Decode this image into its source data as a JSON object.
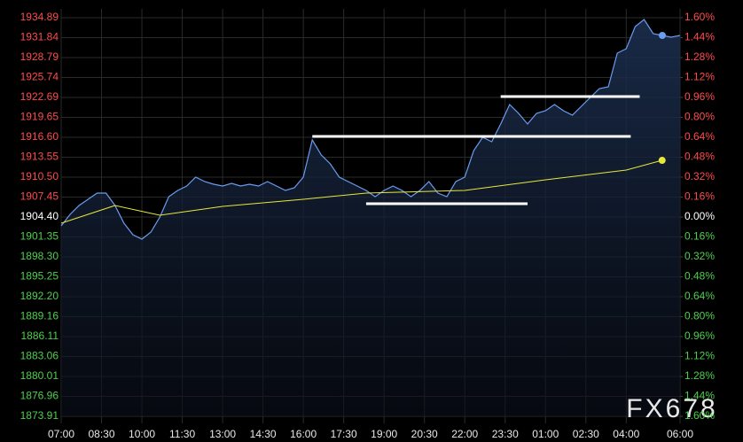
{
  "chart_data": {
    "type": "line",
    "watermark": "FX678",
    "xlim": [
      "07:00",
      "06:00"
    ],
    "xticks": [
      "07:00",
      "08:30",
      "10:00",
      "11:30",
      "13:00",
      "14:30",
      "16:00",
      "17:30",
      "19:00",
      "20:30",
      "22:00",
      "23:30",
      "01:00",
      "02:30",
      "04:00",
      "06:00"
    ],
    "ylim": [
      1873.91,
      1934.89
    ],
    "yticks": [
      1934.89,
      1931.84,
      1928.79,
      1925.74,
      {
        "value": 1922.69,
        "label": "1922.69"
      },
      1919.65,
      {
        "value": 1916.6,
        "label": "1916.60"
      },
      1913.55,
      {
        "value": 1910.5,
        "label": "1910.50"
      },
      1907.45,
      {
        "value": 1904.4,
        "label": "1904.40"
      },
      1901.35,
      {
        "value": 1898.3,
        "label": "1898.30"
      },
      1895.25,
      {
        "value": 1892.2,
        "label": "1892.20"
      },
      1889.16,
      1886.11,
      1883.06,
      1880.01,
      1876.96,
      1873.91
    ],
    "y2lim": [
      -1.6,
      1.6
    ],
    "y2ticks": [
      {
        "value": 1.6,
        "label": "1.60%"
      },
      {
        "value": 1.44,
        "label": "1.44%"
      },
      {
        "value": 1.28,
        "label": "1.28%"
      },
      {
        "value": 1.12,
        "label": "1.12%"
      },
      {
        "value": 0.96,
        "label": "0.96%"
      },
      {
        "value": 0.8,
        "label": "0.80%"
      },
      {
        "value": 0.64,
        "label": "0.64%"
      },
      {
        "value": 0.48,
        "label": "0.48%"
      },
      {
        "value": 0.32,
        "label": "0.32%"
      },
      {
        "value": 0.16,
        "label": "0.16%"
      },
      {
        "value": 0,
        "label": "0.00%"
      },
      {
        "value": -0.16,
        "label": "0.16%"
      },
      {
        "value": -0.32,
        "label": "0.32%"
      },
      {
        "value": -0.48,
        "label": "0.48%"
      },
      {
        "value": -0.64,
        "label": "0.64%"
      },
      {
        "value": -0.8,
        "label": "0.80%"
      },
      {
        "value": -0.96,
        "label": "0.96%"
      },
      {
        "value": -1.12,
        "label": "1.12%"
      },
      {
        "value": -1.28,
        "label": "1.28%"
      },
      {
        "value": -1.44,
        "label": "1.44%"
      },
      {
        "value": -1.6,
        "label": "1.60%"
      }
    ],
    "grid": true,
    "series": [
      {
        "color": "#6a9df0",
        "x": [
          "07:00",
          "07:20",
          "07:40",
          "08:00",
          "08:20",
          "08:40",
          "09:00",
          "09:20",
          "09:40",
          "10:00",
          "10:20",
          "10:40",
          "11:00",
          "11:20",
          "11:40",
          "12:00",
          "12:20",
          "12:40",
          "13:00",
          "13:20",
          "13:40",
          "14:00",
          "14:20",
          "14:40",
          "15:00",
          "15:20",
          "15:40",
          "16:00",
          "16:20",
          "16:40",
          "17:00",
          "17:20",
          "17:40",
          "18:00",
          "18:20",
          "18:40",
          "19:00",
          "19:20",
          "19:40",
          "20:00",
          "20:20",
          "20:40",
          "21:00",
          "21:20",
          "21:40",
          "22:00",
          "22:20",
          "22:40",
          "23:00",
          "23:20",
          "23:40",
          "00:00",
          "00:20",
          "00:40",
          "01:00",
          "01:20",
          "01:40",
          "02:00",
          "02:20",
          "02:40",
          "03:00",
          "03:20",
          "03:40",
          "04:00",
          "04:20",
          "04:40",
          "05:00",
          "05:20",
          "05:40",
          "06:00"
        ],
        "values": [
          1903.05,
          1904.81,
          1906.16,
          1907.11,
          1908.06,
          1908.06,
          1906.16,
          1903.45,
          1901.69,
          1901.01,
          1902.1,
          1904.4,
          1907.52,
          1908.47,
          1909.14,
          1910.5,
          1909.82,
          1909.41,
          1909.14,
          1909.55,
          1909.14,
          1909.41,
          1909.14,
          1909.82,
          1909.14,
          1908.47,
          1908.87,
          1910.5,
          1916.19,
          1913.89,
          1912.53,
          1910.5,
          1909.82,
          1909.14,
          1908.47,
          1907.52,
          1908.47,
          1909.14,
          1908.47,
          1907.52,
          1908.47,
          1909.82,
          1908.06,
          1907.52,
          1909.82,
          1910.5,
          1914.56,
          1916.6,
          1915.92,
          1918.63,
          1921.61,
          1920.26,
          1918.63,
          1920.26,
          1920.66,
          1921.61,
          1920.66,
          1919.98,
          1921.34,
          1922.7,
          1924.05,
          1924.32,
          1929.47,
          1930.15,
          1933.54,
          1934.62,
          1932.45,
          1932.18,
          1931.91,
          1932.18
        ]
      },
      {
        "color": "#e8e83a",
        "x": [
          "07:00",
          "09:00",
          "10:40",
          "13:00",
          "16:00",
          "18:20",
          "22:00",
          "01:00",
          "04:00",
          "05:20"
        ],
        "values": [
          1903.45,
          1906.16,
          1904.67,
          1906.03,
          1907.11,
          1908.06,
          1908.47,
          1910.09,
          1911.58,
          1913.07
        ]
      }
    ],
    "levels": [
      {
        "from": "16:20",
        "to": "04:10",
        "value": 1916.73,
        "color": "#ffffff"
      },
      {
        "from": "23:20",
        "to": "04:30",
        "value": 1922.83,
        "color": "#ffffff"
      },
      {
        "from": "18:20",
        "to": "00:20",
        "value": 1906.43,
        "color": "#ffffff"
      }
    ]
  }
}
